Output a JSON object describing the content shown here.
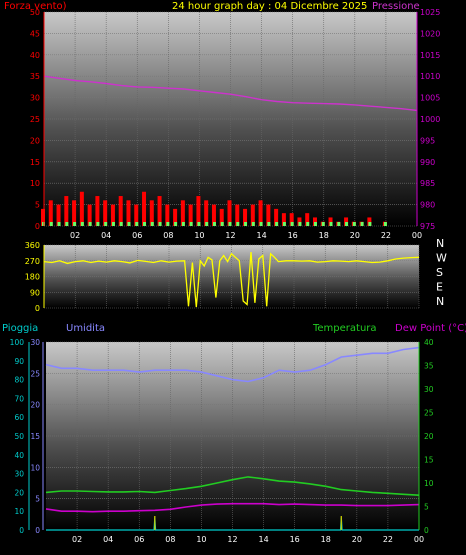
{
  "header": {
    "left_label": "Forza vento)",
    "title": "24 hour graph day : 04 Dicembre 2025",
    "right_label": "Pressione"
  },
  "time_ticks": [
    "02",
    "04",
    "06",
    "08",
    "10",
    "12",
    "14",
    "16",
    "18",
    "20",
    "22",
    "00"
  ],
  "colors": {
    "wind": "#ff0000",
    "gust": "#ff0000",
    "wind_avg": "#66ff66",
    "pressure": "#cc33cc",
    "direction": "#ffff00",
    "humidity": "#8888ff",
    "temperature": "#22cc22",
    "dew_point": "#cc00cc",
    "rain": "#00cccc",
    "wind_axis": "#ff0000",
    "pressure_axis": "#cc00cc",
    "rain_axis": "#00cccc",
    "humidity_axis": "#8888ff",
    "temperature_axis": "#22cc22"
  },
  "chart_data": [
    {
      "type": "line",
      "series": [
        {
          "name": "Forza vento)",
          "axis": "left",
          "ylim": [
            0,
            50
          ],
          "x": [
            0,
            0.5,
            1,
            1.5,
            2,
            2.5,
            3,
            3.5,
            4,
            4.5,
            5,
            5.5,
            6,
            6.5,
            7,
            7.5,
            8,
            8.5,
            9,
            9.5,
            10,
            10.5,
            11,
            11.5,
            12,
            12.5,
            13,
            13.5,
            14,
            14.5,
            15,
            15.5,
            16,
            16.5,
            17,
            17.5,
            18,
            18.5,
            19,
            19.5,
            20,
            20.5,
            21,
            21.5,
            22,
            22.5,
            23,
            23.5,
            24
          ],
          "values": [
            4,
            6,
            5,
            7,
            6,
            8,
            5,
            7,
            6,
            5,
            7,
            6,
            5,
            8,
            6,
            7,
            5,
            4,
            6,
            5,
            7,
            6,
            5,
            4,
            6,
            5,
            4,
            5,
            6,
            5,
            4,
            3,
            3,
            2,
            3,
            2,
            1,
            2,
            1,
            2,
            1,
            1,
            2,
            0,
            1,
            0,
            0,
            0,
            0
          ]
        },
        {
          "name": "Pressione",
          "axis": "right",
          "ylim": [
            975,
            1025
          ],
          "x": [
            0,
            1,
            2,
            3,
            4,
            5,
            6,
            7,
            8,
            9,
            10,
            11,
            12,
            13,
            14,
            15,
            16,
            17,
            18,
            19,
            20,
            21,
            22,
            23,
            24
          ],
          "values": [
            1010,
            1009.5,
            1009,
            1008.7,
            1008.3,
            1007.8,
            1007.5,
            1007.4,
            1007.2,
            1007,
            1006.6,
            1006.2,
            1005.8,
            1005.2,
            1004.5,
            1004.1,
            1003.8,
            1003.7,
            1003.6,
            1003.5,
            1003.3,
            1003,
            1002.7,
            1002.4,
            1002
          ]
        }
      ],
      "y_ticks_left": [
        0,
        5,
        10,
        15,
        20,
        25,
        30,
        35,
        40,
        45,
        50
      ],
      "y_ticks_right": [
        975,
        980,
        985,
        990,
        995,
        1000,
        1005,
        1010,
        1015,
        1020,
        1025
      ]
    },
    {
      "type": "scatter",
      "series": [
        {
          "name": "direction",
          "ylim": [
            0,
            360
          ],
          "x": [
            0,
            0.5,
            1,
            1.5,
            2,
            2.5,
            3,
            3.5,
            4,
            4.5,
            5,
            5.5,
            6,
            6.5,
            7,
            7.5,
            8,
            8.5,
            9,
            9.25,
            9.5,
            9.75,
            10,
            10.25,
            10.5,
            10.75,
            11,
            11.25,
            11.5,
            11.75,
            12,
            12.25,
            12.5,
            12.75,
            13,
            13.25,
            13.5,
            13.75,
            14,
            14.25,
            14.5,
            14.75,
            15,
            15.5,
            16,
            16.5,
            17,
            17.5,
            18,
            18.5,
            19,
            19.5,
            20,
            20.5,
            21,
            21.5,
            22,
            22.5,
            23,
            23.5,
            24
          ],
          "values": [
            265,
            260,
            270,
            255,
            265,
            270,
            260,
            268,
            262,
            270,
            265,
            258,
            272,
            266,
            260,
            270,
            262,
            268,
            270,
            10,
            260,
            5,
            270,
            240,
            290,
            275,
            60,
            270,
            300,
            265,
            310,
            290,
            270,
            40,
            20,
            320,
            30,
            280,
            300,
            10,
            310,
            290,
            265,
            270,
            270,
            268,
            270,
            262,
            265,
            270,
            268,
            265,
            270,
            265,
            260,
            262,
            270,
            280,
            285,
            288,
            290
          ]
        }
      ],
      "y_ticks": [
        0,
        90,
        180,
        270,
        360
      ],
      "compass": [
        "N",
        "W",
        "S",
        "E",
        "N"
      ]
    },
    {
      "type": "line",
      "axis_labels": {
        "rain": "Pioggia",
        "humidity": "Umidita",
        "temperature": "Temperatura",
        "dew_point": "Dew Point (°C)"
      },
      "series": [
        {
          "name": "Umidita",
          "axis": "humidity",
          "ylim": [
            0,
            100
          ],
          "x": [
            0,
            1,
            2,
            3,
            4,
            5,
            6,
            7,
            8,
            9,
            10,
            11,
            12,
            13,
            14,
            15,
            16,
            17,
            18,
            19,
            20,
            21,
            22,
            23,
            24
          ],
          "values": [
            88,
            86,
            86,
            85,
            85,
            85,
            84,
            85,
            85,
            85,
            84,
            82,
            80,
            79,
            81,
            85,
            84,
            85,
            88,
            92,
            93,
            94,
            94,
            96,
            97
          ]
        },
        {
          "name": "Temperatura",
          "axis": "temperature",
          "ylim": [
            0,
            40
          ],
          "x": [
            0,
            1,
            2,
            3,
            4,
            5,
            6,
            7,
            8,
            9,
            10,
            11,
            12,
            13,
            14,
            15,
            16,
            17,
            18,
            19,
            20,
            21,
            22,
            23,
            24
          ],
          "values": [
            8,
            8.3,
            8.3,
            8.2,
            8.1,
            8.1,
            8.2,
            8.0,
            8.4,
            8.8,
            9.3,
            10.0,
            10.7,
            11.3,
            10.9,
            10.4,
            10.2,
            9.8,
            9.3,
            8.6,
            8.3,
            8.0,
            7.8,
            7.6,
            7.4
          ]
        },
        {
          "name": "Dew Point (°C)",
          "axis": "temperature",
          "ylim": [
            0,
            40
          ],
          "x": [
            0,
            1,
            2,
            3,
            4,
            5,
            6,
            7,
            8,
            9,
            10,
            11,
            12,
            13,
            14,
            15,
            16,
            17,
            18,
            19,
            20,
            21,
            22,
            23,
            24
          ],
          "values": [
            4.5,
            4.0,
            4.0,
            3.9,
            4.0,
            4.0,
            4.1,
            4.2,
            4.4,
            4.9,
            5.3,
            5.5,
            5.6,
            5.6,
            5.6,
            5.4,
            5.5,
            5.4,
            5.3,
            5.3,
            5.2,
            5.2,
            5.2,
            5.3,
            5.4
          ]
        },
        {
          "name": "Pioggia",
          "axis": "rain",
          "ylim": [
            0,
            30
          ],
          "x": [
            0,
            6,
            6.95,
            7,
            7.05,
            18,
            18.95,
            19,
            19.05,
            24
          ],
          "values": [
            0,
            0,
            0,
            2,
            0,
            0,
            0,
            2,
            0,
            0
          ]
        }
      ],
      "y_ticks_rain": [
        0,
        5,
        10,
        15,
        20,
        25,
        30
      ],
      "y_ticks_humidity": [
        0,
        10,
        20,
        30,
        40,
        50,
        60,
        70,
        80,
        90,
        100
      ],
      "y_ticks_temperature": [
        0,
        5,
        10,
        15,
        20,
        25,
        30,
        35,
        40
      ]
    }
  ]
}
